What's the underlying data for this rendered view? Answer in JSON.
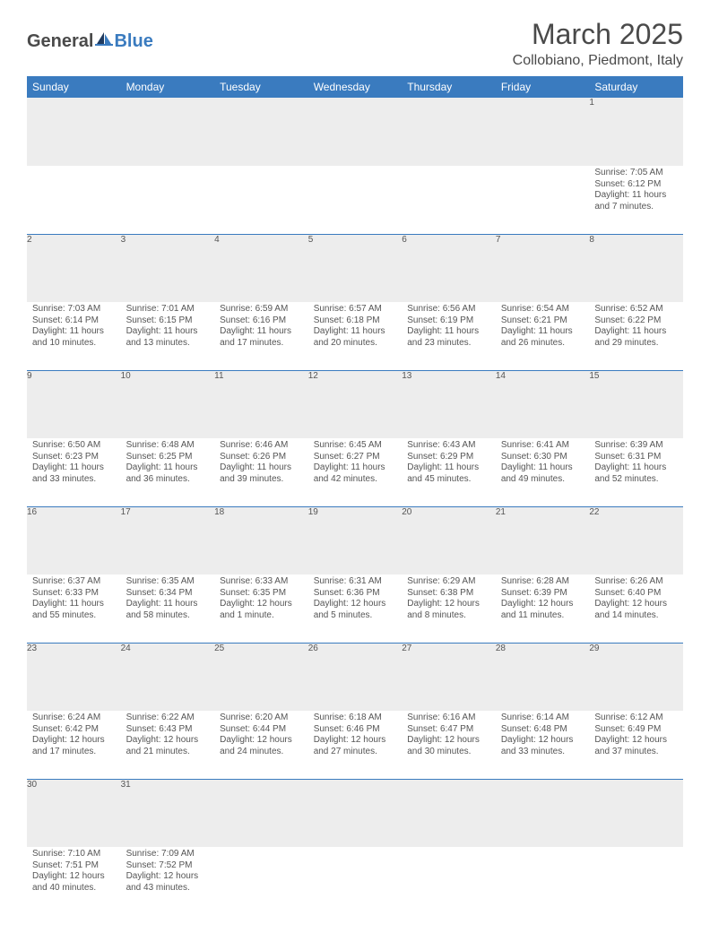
{
  "brand": {
    "word1": "General",
    "word2": "Blue"
  },
  "title": "March 2025",
  "location": "Collobiano, Piedmont, Italy",
  "theme": {
    "header_bg": "#3a7bbf",
    "header_fg": "#ffffff",
    "daynum_bg": "#ededed",
    "text_color": "#555555",
    "page_bg": "#ffffff"
  },
  "weekdays": [
    "Sunday",
    "Monday",
    "Tuesday",
    "Wednesday",
    "Thursday",
    "Friday",
    "Saturday"
  ],
  "weeks": [
    [
      null,
      null,
      null,
      null,
      null,
      null,
      {
        "n": "1",
        "sr": "7:05 AM",
        "ss": "6:12 PM",
        "dl": "11 hours and 7 minutes."
      }
    ],
    [
      {
        "n": "2",
        "sr": "7:03 AM",
        "ss": "6:14 PM",
        "dl": "11 hours and 10 minutes."
      },
      {
        "n": "3",
        "sr": "7:01 AM",
        "ss": "6:15 PM",
        "dl": "11 hours and 13 minutes."
      },
      {
        "n": "4",
        "sr": "6:59 AM",
        "ss": "6:16 PM",
        "dl": "11 hours and 17 minutes."
      },
      {
        "n": "5",
        "sr": "6:57 AM",
        "ss": "6:18 PM",
        "dl": "11 hours and 20 minutes."
      },
      {
        "n": "6",
        "sr": "6:56 AM",
        "ss": "6:19 PM",
        "dl": "11 hours and 23 minutes."
      },
      {
        "n": "7",
        "sr": "6:54 AM",
        "ss": "6:21 PM",
        "dl": "11 hours and 26 minutes."
      },
      {
        "n": "8",
        "sr": "6:52 AM",
        "ss": "6:22 PM",
        "dl": "11 hours and 29 minutes."
      }
    ],
    [
      {
        "n": "9",
        "sr": "6:50 AM",
        "ss": "6:23 PM",
        "dl": "11 hours and 33 minutes."
      },
      {
        "n": "10",
        "sr": "6:48 AM",
        "ss": "6:25 PM",
        "dl": "11 hours and 36 minutes."
      },
      {
        "n": "11",
        "sr": "6:46 AM",
        "ss": "6:26 PM",
        "dl": "11 hours and 39 minutes."
      },
      {
        "n": "12",
        "sr": "6:45 AM",
        "ss": "6:27 PM",
        "dl": "11 hours and 42 minutes."
      },
      {
        "n": "13",
        "sr": "6:43 AM",
        "ss": "6:29 PM",
        "dl": "11 hours and 45 minutes."
      },
      {
        "n": "14",
        "sr": "6:41 AM",
        "ss": "6:30 PM",
        "dl": "11 hours and 49 minutes."
      },
      {
        "n": "15",
        "sr": "6:39 AM",
        "ss": "6:31 PM",
        "dl": "11 hours and 52 minutes."
      }
    ],
    [
      {
        "n": "16",
        "sr": "6:37 AM",
        "ss": "6:33 PM",
        "dl": "11 hours and 55 minutes."
      },
      {
        "n": "17",
        "sr": "6:35 AM",
        "ss": "6:34 PM",
        "dl": "11 hours and 58 minutes."
      },
      {
        "n": "18",
        "sr": "6:33 AM",
        "ss": "6:35 PM",
        "dl": "12 hours and 1 minute."
      },
      {
        "n": "19",
        "sr": "6:31 AM",
        "ss": "6:36 PM",
        "dl": "12 hours and 5 minutes."
      },
      {
        "n": "20",
        "sr": "6:29 AM",
        "ss": "6:38 PM",
        "dl": "12 hours and 8 minutes."
      },
      {
        "n": "21",
        "sr": "6:28 AM",
        "ss": "6:39 PM",
        "dl": "12 hours and 11 minutes."
      },
      {
        "n": "22",
        "sr": "6:26 AM",
        "ss": "6:40 PM",
        "dl": "12 hours and 14 minutes."
      }
    ],
    [
      {
        "n": "23",
        "sr": "6:24 AM",
        "ss": "6:42 PM",
        "dl": "12 hours and 17 minutes."
      },
      {
        "n": "24",
        "sr": "6:22 AM",
        "ss": "6:43 PM",
        "dl": "12 hours and 21 minutes."
      },
      {
        "n": "25",
        "sr": "6:20 AM",
        "ss": "6:44 PM",
        "dl": "12 hours and 24 minutes."
      },
      {
        "n": "26",
        "sr": "6:18 AM",
        "ss": "6:46 PM",
        "dl": "12 hours and 27 minutes."
      },
      {
        "n": "27",
        "sr": "6:16 AM",
        "ss": "6:47 PM",
        "dl": "12 hours and 30 minutes."
      },
      {
        "n": "28",
        "sr": "6:14 AM",
        "ss": "6:48 PM",
        "dl": "12 hours and 33 minutes."
      },
      {
        "n": "29",
        "sr": "6:12 AM",
        "ss": "6:49 PM",
        "dl": "12 hours and 37 minutes."
      }
    ],
    [
      {
        "n": "30",
        "sr": "7:10 AM",
        "ss": "7:51 PM",
        "dl": "12 hours and 40 minutes."
      },
      {
        "n": "31",
        "sr": "7:09 AM",
        "ss": "7:52 PM",
        "dl": "12 hours and 43 minutes."
      },
      null,
      null,
      null,
      null,
      null
    ]
  ],
  "labels": {
    "sunrise": "Sunrise:",
    "sunset": "Sunset:",
    "daylight": "Daylight:"
  }
}
